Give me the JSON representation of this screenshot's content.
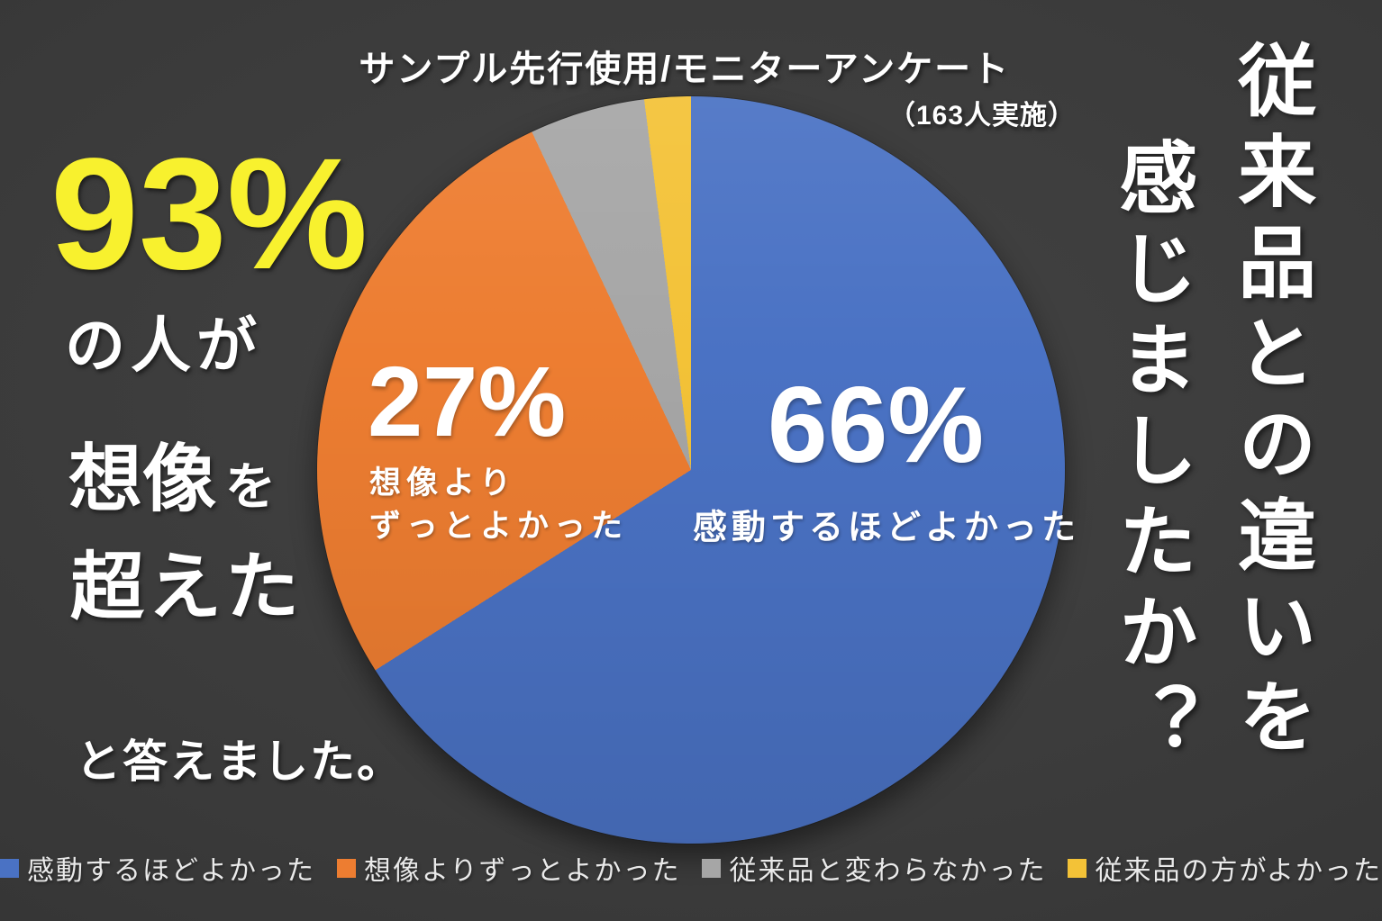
{
  "header": {
    "title": "サンプル先行使用/モニターアンケート",
    "sample_size": "（163人実施）"
  },
  "left_caption": {
    "percent": "93%",
    "line1": "の人が",
    "line2_main": "想像",
    "line2_particle": "を",
    "line3": "超えた",
    "line4": "と答えました。"
  },
  "right_question": {
    "column1": "従来品との違いを",
    "column2": "感じましたか？"
  },
  "chart_data": {
    "type": "pie",
    "title": "サンプル先行使用/モニターアンケート",
    "subtitle": "（163人実施）",
    "categories": [
      "感動するほどよかった",
      "想像よりずっとよかった",
      "従来品と変わらなかった",
      "従来品の方がよかった"
    ],
    "values": [
      66,
      27,
      5,
      2
    ],
    "colors": [
      "#4A72C4",
      "#ED7D31",
      "#A6A6A6",
      "#F3C237"
    ],
    "start_angle_deg": 0,
    "direction": "clockwise",
    "legend_position": "bottom",
    "slice_labels": {
      "blue_pct": "66%",
      "blue_name": "感動するほどよかった",
      "orange_pct": "27%",
      "orange_line1": "想像より",
      "orange_line2": "ずっとよかった"
    }
  },
  "colors": {
    "accent_yellow_text": "#F8F12E",
    "background": "#3a3a3a",
    "text": "#FFFFFF"
  }
}
